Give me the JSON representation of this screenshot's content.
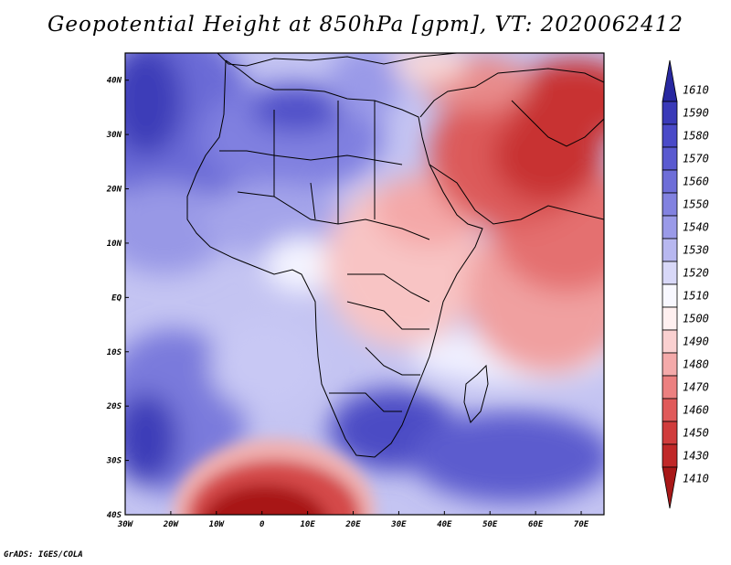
{
  "title": "Geopotential Height at 850hPa [gpm], VT: 2020062412",
  "credit": "GrADS: IGES/COLA",
  "map": {
    "lat_range": [
      -40,
      45
    ],
    "lon_range": [
      -30,
      75
    ],
    "lat_labels": [
      "40N",
      "30N",
      "20N",
      "10N",
      "EQ",
      "10S",
      "20S",
      "30S",
      "40S"
    ],
    "lon_labels": [
      "30W",
      "20W",
      "10W",
      "0",
      "10E",
      "20E",
      "30E",
      "40E",
      "50E",
      "60E",
      "70E"
    ]
  },
  "colorbar": {
    "levels": [
      "1610",
      "1590",
      "1580",
      "1570",
      "1560",
      "1550",
      "1540",
      "1530",
      "1520",
      "1510",
      "1500",
      "1490",
      "1480",
      "1470",
      "1460",
      "1450",
      "1430",
      "1410"
    ],
    "colors": [
      "#2828a0",
      "#3a3ab8",
      "#4a4ac8",
      "#5a5ad0",
      "#6e6ed8",
      "#8282e0",
      "#9a9ae8",
      "#b8b8f0",
      "#d8d8f8",
      "#f8f8ff",
      "#fff0f0",
      "#fad0d0",
      "#f4aaaa",
      "#ec8080",
      "#e05a5a",
      "#d03c3c",
      "#c02828",
      "#a81818"
    ]
  }
}
